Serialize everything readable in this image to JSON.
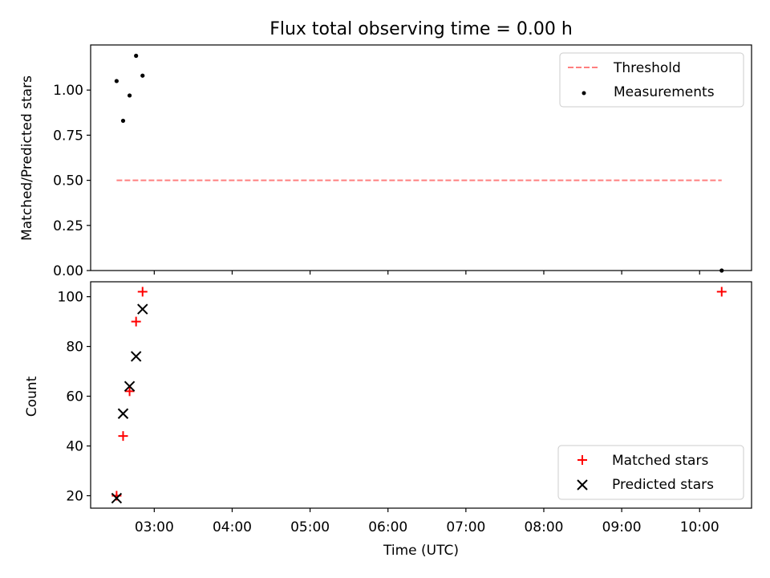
{
  "title": "Flux total observing time = 0.00 h",
  "colors": {
    "threshold": "#ff7f7f",
    "measurements": "#000000",
    "matched": "#ff0000",
    "predicted": "#000000"
  },
  "chart_data": [
    {
      "type": "scatter",
      "title": "Flux total observing time = 0.00 h",
      "ylabel": "Matched/Predicted stars",
      "xlabel": "",
      "xlim": [
        "02:11",
        "10:40"
      ],
      "ylim": [
        0,
        1.25
      ],
      "yticks": [
        0.0,
        0.25,
        0.5,
        0.75,
        1.0
      ],
      "ytick_labels": [
        "0.00",
        "0.25",
        "0.50",
        "0.75",
        "1.00"
      ],
      "legend_placement": "top-right",
      "series": [
        {
          "name": "Threshold",
          "kind": "line",
          "style": "dashed",
          "color": "#ff7f7f",
          "x": [
            "02:31",
            "10:17"
          ],
          "y": [
            0.5,
            0.5
          ]
        },
        {
          "name": "Measurements",
          "kind": "scatter",
          "marker": "dot",
          "color": "#000000",
          "x": [
            "02:31",
            "02:36",
            "02:41",
            "02:46",
            "02:51",
            "10:17"
          ],
          "y": [
            1.05,
            0.83,
            0.97,
            1.19,
            1.08,
            0.0
          ]
        }
      ]
    },
    {
      "type": "scatter",
      "ylabel": "Count",
      "xlabel": "Time (UTC)",
      "xlim": [
        "02:11",
        "10:40"
      ],
      "ylim": [
        15,
        106
      ],
      "yticks": [
        20,
        40,
        60,
        80,
        100
      ],
      "ytick_labels": [
        "20",
        "40",
        "60",
        "80",
        "100"
      ],
      "xticks": [
        "03:00",
        "04:00",
        "05:00",
        "06:00",
        "07:00",
        "08:00",
        "09:00",
        "10:00"
      ],
      "legend_placement": "bottom-right",
      "series": [
        {
          "name": "Matched stars",
          "kind": "scatter",
          "marker": "plus",
          "color": "#ff0000",
          "x": [
            "02:31",
            "02:36",
            "02:41",
            "02:46",
            "02:51",
            "10:17"
          ],
          "y": [
            20,
            44,
            62,
            90,
            102,
            102
          ]
        },
        {
          "name": "Predicted stars",
          "kind": "scatter",
          "marker": "x",
          "color": "#000000",
          "x": [
            "02:31",
            "02:36",
            "02:41",
            "02:46",
            "02:51"
          ],
          "y": [
            19,
            53,
            64,
            76,
            95
          ]
        }
      ]
    }
  ]
}
